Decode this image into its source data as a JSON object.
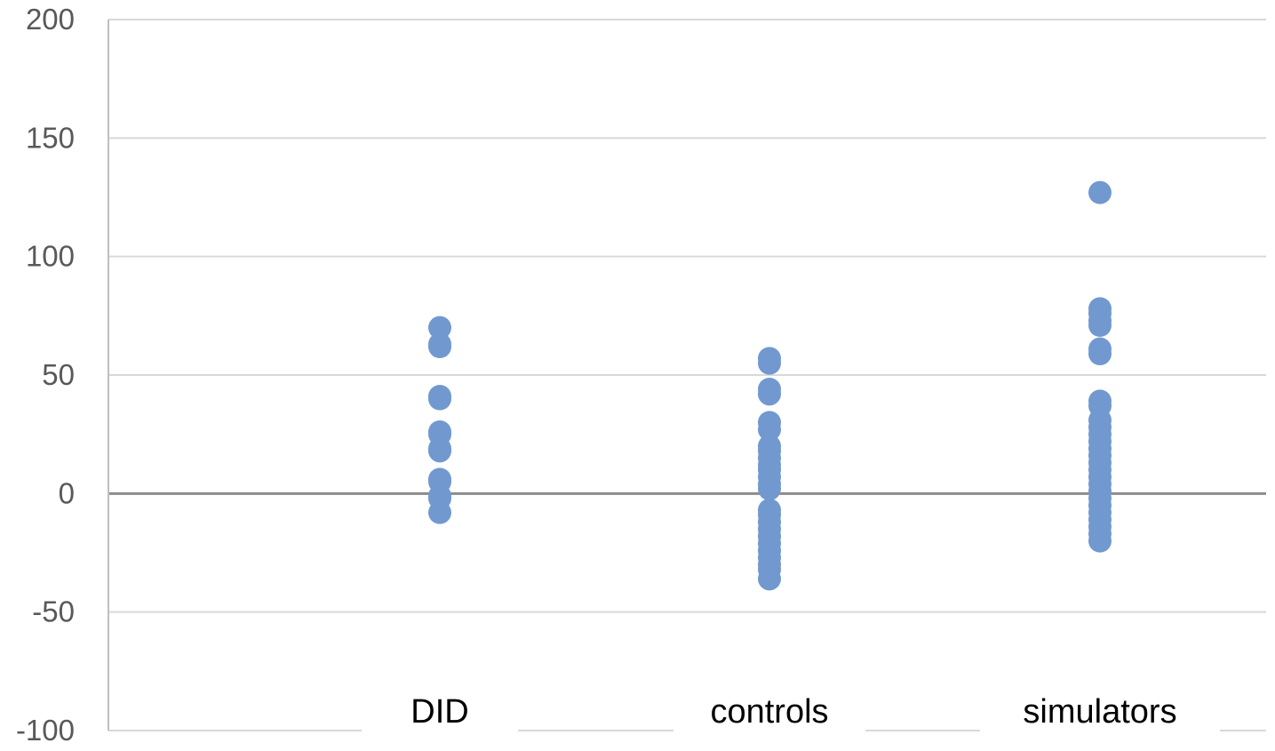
{
  "chart_data": {
    "type": "scatter",
    "categories": [
      "DID",
      "controls",
      "simulators"
    ],
    "ylim": [
      -100,
      200
    ],
    "yticks": [
      -100,
      -50,
      0,
      50,
      100,
      150,
      200
    ],
    "grid": true,
    "legend": "none",
    "marker_color": "#7199cf",
    "series": [
      {
        "category": "DID",
        "values": [
          70,
          63,
          62,
          41,
          40,
          26,
          25,
          19,
          18,
          6,
          5,
          -1,
          -2,
          -8
        ]
      },
      {
        "category": "controls",
        "values": [
          57,
          55,
          44,
          42,
          30,
          27,
          20,
          18,
          15,
          12,
          10,
          7,
          4,
          2,
          -7,
          -9,
          -12,
          -15,
          -18,
          -21,
          -24,
          -27,
          -30,
          -32,
          -36
        ]
      },
      {
        "category": "simulators",
        "values": [
          127,
          78,
          76,
          73,
          71,
          61,
          59,
          39,
          37,
          31,
          28,
          25,
          22,
          19,
          16,
          13,
          10,
          7,
          4,
          1,
          -2,
          -5,
          -8,
          -11,
          -14,
          -17,
          -20
        ]
      }
    ]
  }
}
